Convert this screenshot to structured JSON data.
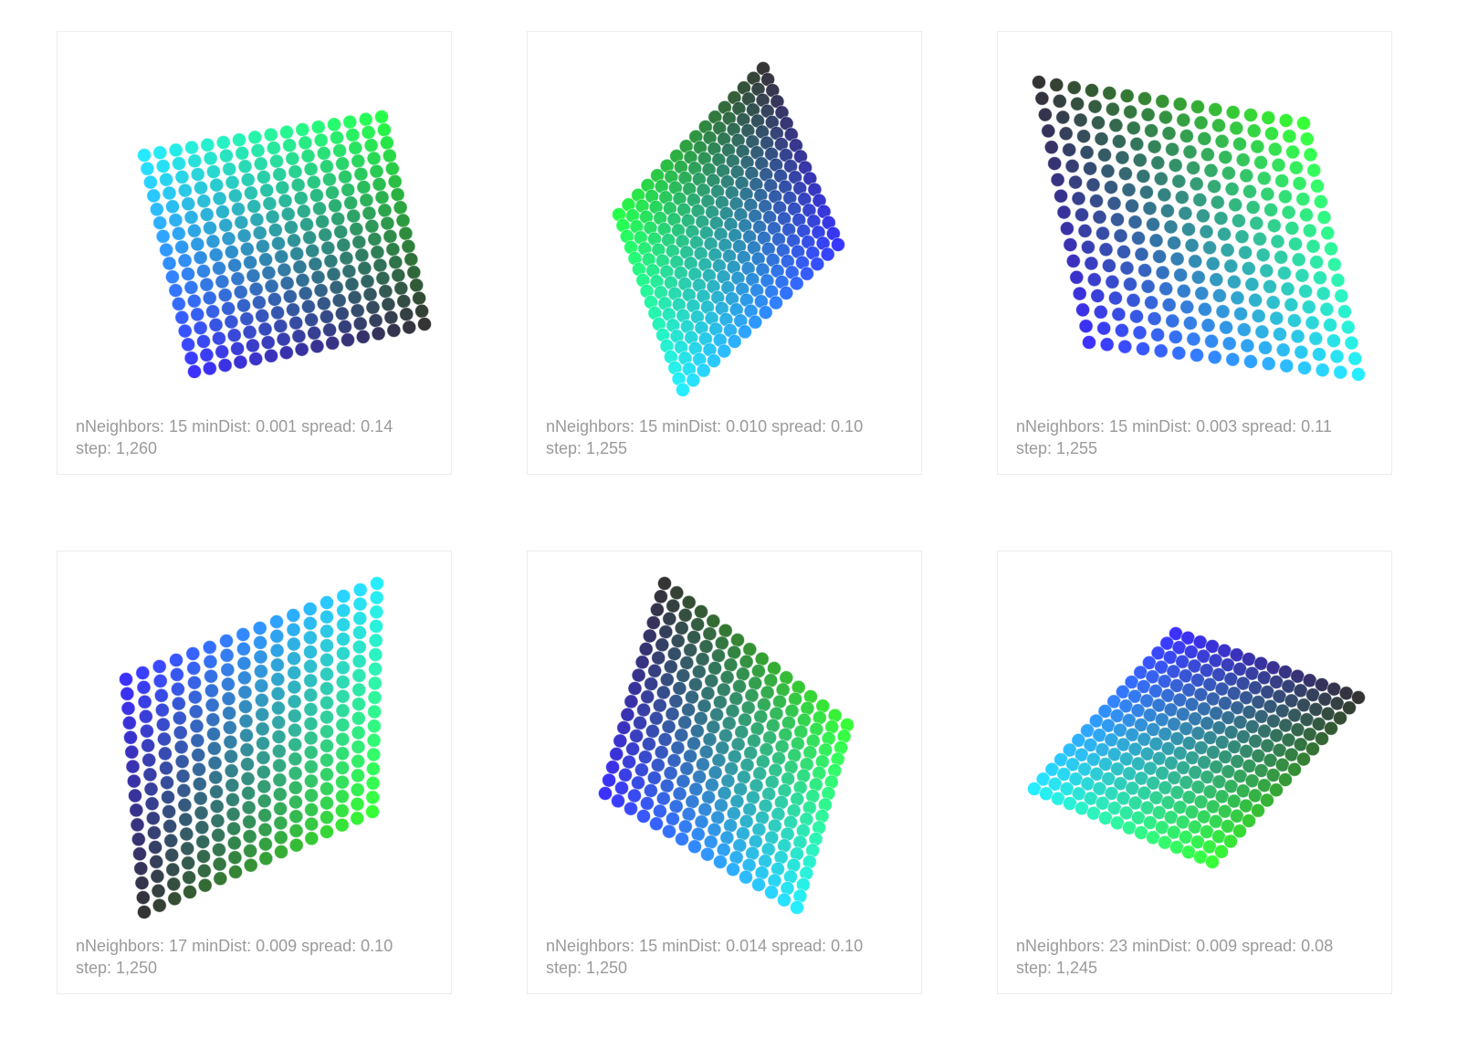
{
  "cards": [
    {
      "caption_line1": "nNeighbors: 15 minDist: 0.001 spread: 0.14",
      "caption_line2": "step: 1,260",
      "colors": {
        "a": "#00e6ff",
        "b": "#00ff2a",
        "c": "#1a0dff",
        "d": "#101010"
      },
      "grid": {
        "cols": 16,
        "rows": 17
      }
    },
    {
      "caption_line1": "nNeighbors: 15 minDist: 0.010 spread: 0.10",
      "caption_line2": "step: 1,255",
      "colors": {
        "a": "#00ff2a",
        "b": "#141414",
        "c": "#00eaff",
        "d": "#1414ff"
      },
      "grid": {
        "cols": 16,
        "rows": 17
      }
    },
    {
      "caption_line1": "nNeighbors: 15 minDist: 0.003 spread: 0.11",
      "caption_line2": "step: 1,255",
      "colors": {
        "a": "#101010",
        "b": "#14ff14",
        "c": "#1a0dff",
        "d": "#00eaff"
      },
      "grid": {
        "cols": 16,
        "rows": 17
      }
    },
    {
      "caption_line1": "nNeighbors: 17 minDist: 0.009 spread: 0.10",
      "caption_line2": "step: 1,250",
      "colors": {
        "a": "#1a0dff",
        "b": "#00eaff",
        "c": "#101010",
        "d": "#14ff14"
      },
      "grid": {
        "cols": 16,
        "rows": 17
      }
    },
    {
      "caption_line1": "nNeighbors: 15 minDist: 0.014 spread: 0.10",
      "caption_line2": "step: 1,250",
      "colors": {
        "a": "#101010",
        "b": "#14ff14",
        "c": "#1a0dff",
        "d": "#00eaff"
      },
      "grid": {
        "cols": 16,
        "rows": 17
      }
    },
    {
      "caption_line1": "nNeighbors: 23 minDist: 0.009 spread: 0.08",
      "caption_line2": "step: 1,245",
      "colors": {
        "a": "#1a0dff",
        "b": "#101010",
        "c": "#00eaff",
        "d": "#14ff14"
      },
      "grid": {
        "cols": 16,
        "rows": 17
      }
    }
  ]
}
